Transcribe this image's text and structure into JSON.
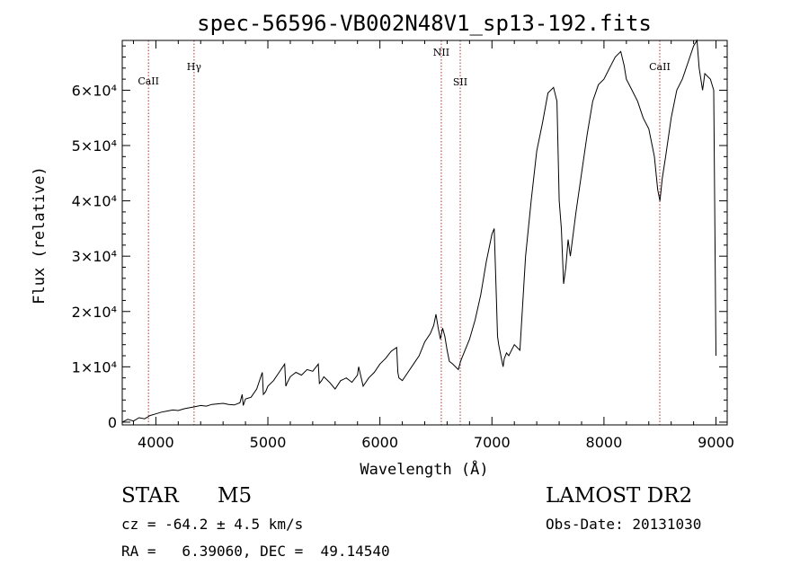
{
  "chart_data": {
    "type": "line",
    "title": "spec-56596-VB002N48V1_sp13-192.fits",
    "xlabel": "Wavelength (Å)",
    "ylabel": "Flux (relative)",
    "xlim": [
      3700,
      9100
    ],
    "ylim": [
      -500,
      69000
    ],
    "x_ticks": [
      4000,
      5000,
      6000,
      7000,
      8000,
      9000
    ],
    "y_ticks": [
      0,
      10000,
      20000,
      30000,
      40000,
      50000,
      60000
    ],
    "y_tick_labels": [
      "0",
      "1×10⁴",
      "2×10⁴",
      "3×10⁴",
      "4×10⁴",
      "5×10⁴",
      "6×10⁴"
    ],
    "line_markers": [
      {
        "label": "CaII",
        "x": 3934
      },
      {
        "label": "Hγ",
        "x": 4341
      },
      {
        "label": "NII",
        "x": 6548
      },
      {
        "label": "SII",
        "x": 6717
      },
      {
        "label": "CaII",
        "x": 8498
      }
    ],
    "series": [
      {
        "x": [
          3700,
          3750,
          3800,
          3850,
          3900,
          3950,
          4000,
          4050,
          4100,
          4150,
          4200,
          4250,
          4300,
          4350,
          4400,
          4450,
          4500,
          4550,
          4600,
          4650,
          4700,
          4750,
          4770,
          4780,
          4800,
          4850,
          4900,
          4950,
          4960,
          4980,
          5000,
          5050,
          5100,
          5150,
          5160,
          5170,
          5200,
          5250,
          5300,
          5350,
          5400,
          5450,
          5460,
          5480,
          5500,
          5550,
          5600,
          5650,
          5700,
          5750,
          5800,
          5810,
          5850,
          5900,
          5950,
          6000,
          6050,
          6100,
          6150,
          6160,
          6170,
          6200,
          6250,
          6300,
          6350,
          6400,
          6450,
          6480,
          6500,
          6520,
          6540,
          6560,
          6580,
          6600,
          6620,
          6650,
          6700,
          6720,
          6750,
          6800,
          6850,
          6900,
          6950,
          7000,
          7020,
          7040,
          7050,
          7060,
          7080,
          7100,
          7110,
          7130,
          7150,
          7200,
          7250,
          7300,
          7350,
          7400,
          7450,
          7500,
          7550,
          7580,
          7600,
          7620,
          7640,
          7660,
          7680,
          7700,
          7750,
          7800,
          7850,
          7900,
          7950,
          8000,
          8050,
          8100,
          8150,
          8180,
          8200,
          8250,
          8300,
          8350,
          8400,
          8450,
          8480,
          8500,
          8520,
          8550,
          8600,
          8650,
          8700,
          8750,
          8800,
          8830,
          8850,
          8880,
          8900,
          8950,
          8980,
          9000
        ],
        "y": [
          0,
          500,
          200,
          800,
          600,
          1200,
          1500,
          1800,
          2000,
          2200,
          2100,
          2400,
          2600,
          2800,
          3000,
          2900,
          3200,
          3300,
          3400,
          3200,
          3100,
          3500,
          5000,
          3000,
          4200,
          4500,
          6000,
          9000,
          5000,
          5500,
          6500,
          7500,
          9000,
          10500,
          6500,
          7000,
          8200,
          9000,
          8500,
          9500,
          9200,
          10500,
          7000,
          7500,
          8200,
          7200,
          6000,
          7500,
          8000,
          7200,
          8500,
          10000,
          6500,
          8000,
          9000,
          10500,
          11500,
          12800,
          13500,
          9000,
          8000,
          7500,
          9000,
          10500,
          12000,
          14500,
          16000,
          17500,
          19500,
          17000,
          15000,
          17000,
          15500,
          13000,
          11000,
          10500,
          9500,
          11000,
          12500,
          15000,
          18500,
          23000,
          29000,
          34000,
          35000,
          22000,
          15500,
          14000,
          12000,
          10000,
          11500,
          12500,
          12000,
          14000,
          13000,
          30000,
          40000,
          49000,
          54000,
          59500,
          60500,
          58000,
          40000,
          35000,
          25000,
          28000,
          33000,
          30000,
          38000,
          45000,
          52000,
          58000,
          61000,
          62000,
          64000,
          66000,
          67000,
          64500,
          62000,
          60000,
          58000,
          55000,
          53000,
          48000,
          42000,
          40000,
          44000,
          48000,
          55000,
          60000,
          62000,
          65000,
          68000,
          69000,
          64000,
          60000,
          63000,
          62000,
          60000,
          12000
        ]
      }
    ]
  },
  "info": {
    "object_type": "STAR",
    "subclass": "M5",
    "survey": "LAMOST DR2",
    "redshift": "cz = -64.2 ± 4.5 km/s",
    "obs_date": "Obs-Date: 20131030",
    "coords": "RA =   6.39060, DEC =  49.14540"
  }
}
